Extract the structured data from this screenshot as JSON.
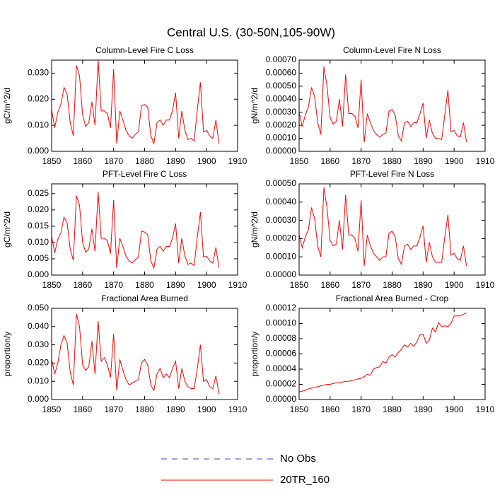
{
  "title": "Central U.S. (30-50N,105-90W)",
  "legend": [
    {
      "name": "No Obs",
      "color": "#4444bb",
      "dash": "dashed"
    },
    {
      "name": "20TR_160",
      "color": "#ff0000",
      "dash": "solid"
    }
  ],
  "chart_data": [
    {
      "type": "line",
      "title": "Column-Level Fire C Loss",
      "ylabel": "gC/m^2/d",
      "color": "#ff0000",
      "x": [
        1850,
        1851,
        1852,
        1853,
        1854,
        1855,
        1856,
        1857,
        1858,
        1859,
        1860,
        1861,
        1862,
        1863,
        1864,
        1865,
        1866,
        1867,
        1868,
        1869,
        1870,
        1871,
        1872,
        1873,
        1874,
        1875,
        1876,
        1877,
        1878,
        1879,
        1880,
        1881,
        1882,
        1883,
        1884,
        1885,
        1886,
        1887,
        1888,
        1889,
        1890,
        1891,
        1892,
        1893,
        1894,
        1895,
        1896,
        1897,
        1898,
        1899,
        1900,
        1901,
        1902,
        1903,
        1904
      ],
      "values": [
        0.016,
        0.009,
        0.015,
        0.018,
        0.0245,
        0.022,
        0.011,
        0.006,
        0.033,
        0.029,
        0.014,
        0.0095,
        0.011,
        0.019,
        0.01,
        0.035,
        0.0155,
        0.0155,
        0.0145,
        0.009,
        0.0315,
        0.003,
        0.0155,
        0.012,
        0.008,
        0.006,
        0.005,
        0.0065,
        0.0075,
        0.0175,
        0.018,
        0.017,
        0.006,
        0.003,
        0.011,
        0.012,
        0.01,
        0.012,
        0.012,
        0.0155,
        0.0225,
        0.005,
        0.0155,
        0.008,
        0.0045,
        0.005,
        0.004,
        0.016,
        0.0265,
        0.0075,
        0.008,
        0.006,
        0.005,
        0.012,
        0.003
      ],
      "xlim": [
        1850,
        1910
      ],
      "xticks": [
        1850,
        1860,
        1870,
        1880,
        1890,
        1900,
        1910
      ],
      "ylim": [
        0,
        0.035
      ],
      "yticks": [
        {
          "value": 0,
          "label": "0.000"
        },
        {
          "value": 0.01,
          "label": "0.010"
        },
        {
          "value": 0.02,
          "label": "0.020"
        },
        {
          "value": 0.03,
          "label": "0.030"
        }
      ]
    },
    {
      "type": "line",
      "title": "Column-Level Fire N Loss",
      "ylabel": "gN/m^2/d",
      "color": "#ff0000",
      "x": [
        1850,
        1851,
        1852,
        1853,
        1854,
        1855,
        1856,
        1857,
        1858,
        1859,
        1860,
        1861,
        1862,
        1863,
        1864,
        1865,
        1866,
        1867,
        1868,
        1869,
        1870,
        1871,
        1872,
        1873,
        1874,
        1875,
        1876,
        1877,
        1878,
        1879,
        1880,
        1881,
        1882,
        1883,
        1884,
        1885,
        1886,
        1887,
        1888,
        1889,
        1890,
        1891,
        1892,
        1893,
        1894,
        1895,
        1896,
        1897,
        1898,
        1899,
        1900,
        1901,
        1902,
        1903,
        1904
      ],
      "values": [
        0.0003,
        0.00019,
        0.00028,
        0.00034,
        0.00049,
        0.00042,
        0.00022,
        0.00013,
        0.00065,
        0.0005,
        0.00026,
        0.00021,
        0.00023,
        0.0004,
        0.00019,
        0.00059,
        0.00029,
        0.00029,
        0.00027,
        0.00018,
        0.00055,
        7e-05,
        0.00029,
        0.00022,
        0.00016,
        0.00013,
        0.00011,
        0.00013,
        0.00014,
        0.00031,
        0.00032,
        0.00028,
        0.00012,
        8e-05,
        0.00022,
        0.00023,
        0.00019,
        0.00022,
        0.00022,
        0.00029,
        0.00037,
        0.0001,
        0.00024,
        0.00014,
        0.0001,
        0.0001,
        9e-05,
        0.00028,
        0.00047,
        0.00015,
        0.00016,
        0.00012,
        0.00011,
        0.00022,
        7e-05
      ],
      "xlim": [
        1850,
        1910
      ],
      "xticks": [
        1850,
        1860,
        1870,
        1880,
        1890,
        1900,
        1910
      ],
      "ylim": [
        0,
        0.0007
      ],
      "yticks": [
        {
          "value": 0,
          "label": "0.00000"
        },
        {
          "value": 0.0001,
          "label": "0.00010"
        },
        {
          "value": 0.0002,
          "label": "0.00020"
        },
        {
          "value": 0.0003,
          "label": "0.00030"
        },
        {
          "value": 0.0004,
          "label": "0.00040"
        },
        {
          "value": 0.0005,
          "label": "0.00050"
        },
        {
          "value": 0.0006,
          "label": "0.00060"
        },
        {
          "value": 0.0007,
          "label": "0.00070"
        }
      ]
    },
    {
      "type": "line",
      "title": "PFT-Level Fire C Loss",
      "ylabel": "gC/m^2/d",
      "color": "#ff0000",
      "x": [
        1850,
        1851,
        1852,
        1853,
        1854,
        1855,
        1856,
        1857,
        1858,
        1859,
        1860,
        1861,
        1862,
        1863,
        1864,
        1865,
        1866,
        1867,
        1868,
        1869,
        1870,
        1871,
        1872,
        1873,
        1874,
        1875,
        1876,
        1877,
        1878,
        1879,
        1880,
        1881,
        1882,
        1883,
        1884,
        1885,
        1886,
        1887,
        1888,
        1889,
        1890,
        1891,
        1892,
        1893,
        1894,
        1895,
        1896,
        1897,
        1898,
        1899,
        1900,
        1901,
        1902,
        1903,
        1904
      ],
      "values": [
        0.012,
        0.0068,
        0.011,
        0.013,
        0.0178,
        0.016,
        0.008,
        0.0045,
        0.0243,
        0.0215,
        0.01,
        0.007,
        0.008,
        0.0142,
        0.0073,
        0.0255,
        0.0113,
        0.0113,
        0.0106,
        0.0066,
        0.023,
        0.0022,
        0.0113,
        0.0088,
        0.0058,
        0.0044,
        0.0037,
        0.0047,
        0.0055,
        0.0135,
        0.0132,
        0.0124,
        0.0044,
        0.0022,
        0.008,
        0.0088,
        0.0073,
        0.0088,
        0.0088,
        0.0113,
        0.0158,
        0.0037,
        0.0113,
        0.0058,
        0.0033,
        0.0037,
        0.0029,
        0.0117,
        0.0193,
        0.0055,
        0.0058,
        0.0044,
        0.0037,
        0.0085,
        0.0022
      ],
      "xlim": [
        1850,
        1910
      ],
      "xticks": [
        1850,
        1860,
        1870,
        1880,
        1890,
        1900,
        1910
      ],
      "ylim": [
        0,
        0.028
      ],
      "yticks": [
        {
          "value": 0,
          "label": "0.000"
        },
        {
          "value": 0.005,
          "label": "0.005"
        },
        {
          "value": 0.01,
          "label": "0.010"
        },
        {
          "value": 0.015,
          "label": "0.015"
        },
        {
          "value": 0.02,
          "label": "0.020"
        },
        {
          "value": 0.025,
          "label": "0.025"
        }
      ]
    },
    {
      "type": "line",
      "title": "PFT-Level Fire N Loss",
      "ylabel": "gN/m^2/d",
      "color": "#ff0000",
      "x": [
        1850,
        1851,
        1852,
        1853,
        1854,
        1855,
        1856,
        1857,
        1858,
        1859,
        1860,
        1861,
        1862,
        1863,
        1864,
        1865,
        1866,
        1867,
        1868,
        1869,
        1870,
        1871,
        1872,
        1873,
        1874,
        1875,
        1876,
        1877,
        1878,
        1879,
        1880,
        1881,
        1882,
        1883,
        1884,
        1885,
        1886,
        1887,
        1888,
        1889,
        1890,
        1891,
        1892,
        1893,
        1894,
        1895,
        1896,
        1897,
        1898,
        1899,
        1900,
        1901,
        1902,
        1903,
        1904
      ],
      "values": [
        0.00022,
        0.00015,
        0.00021,
        0.00025,
        0.00037,
        0.00031,
        0.00016,
        0.0001,
        0.00048,
        0.00037,
        0.00019,
        0.00016,
        0.00017,
        0.0003,
        0.00014,
        0.00044,
        0.00022,
        0.00022,
        0.0002,
        0.00013,
        0.00041,
        5e-05,
        0.00022,
        0.00016,
        0.00012,
        0.0001,
        8e-05,
        0.0001,
        0.0001,
        0.00023,
        0.00024,
        0.00021,
        9e-05,
        6e-05,
        0.00016,
        0.00017,
        0.00014,
        0.00016,
        0.00016,
        0.00021,
        0.00027,
        7e-05,
        0.00018,
        0.0001,
        7e-05,
        7e-05,
        7e-05,
        0.00021,
        0.00033,
        0.00011,
        0.00012,
        9e-05,
        8e-05,
        0.00016,
        5e-05
      ],
      "xlim": [
        1850,
        1910
      ],
      "xticks": [
        1850,
        1860,
        1870,
        1880,
        1890,
        1900,
        1910
      ],
      "ylim": [
        0,
        0.0005
      ],
      "yticks": [
        {
          "value": 0,
          "label": "0.00000"
        },
        {
          "value": 0.0001,
          "label": "0.00010"
        },
        {
          "value": 0.0002,
          "label": "0.00020"
        },
        {
          "value": 0.0003,
          "label": "0.00030"
        },
        {
          "value": 0.0004,
          "label": "0.00040"
        },
        {
          "value": 0.0005,
          "label": "0.00050"
        }
      ]
    },
    {
      "type": "line",
      "title": "Fractional Area Burned",
      "ylabel": "proportion/y",
      "color": "#ff0000",
      "x": [
        1850,
        1851,
        1852,
        1853,
        1854,
        1855,
        1856,
        1857,
        1858,
        1859,
        1860,
        1861,
        1862,
        1863,
        1864,
        1865,
        1866,
        1867,
        1868,
        1869,
        1870,
        1871,
        1872,
        1873,
        1874,
        1875,
        1876,
        1877,
        1878,
        1879,
        1880,
        1881,
        1882,
        1883,
        1884,
        1885,
        1886,
        1887,
        1888,
        1889,
        1890,
        1891,
        1892,
        1893,
        1894,
        1895,
        1896,
        1897,
        1898,
        1899,
        1900,
        1901,
        1902,
        1903,
        1904
      ],
      "values": [
        0.022,
        0.014,
        0.02,
        0.03,
        0.035,
        0.031,
        0.015,
        0.008,
        0.047,
        0.04,
        0.019,
        0.016,
        0.018,
        0.032,
        0.014,
        0.043,
        0.021,
        0.023,
        0.019,
        0.012,
        0.036,
        0.005,
        0.022,
        0.016,
        0.011,
        0.008,
        0.009,
        0.01,
        0.011,
        0.02,
        0.022,
        0.019,
        0.008,
        0.005,
        0.014,
        0.017,
        0.012,
        0.014,
        0.012,
        0.017,
        0.021,
        0.006,
        0.017,
        0.01,
        0.007,
        0.006,
        0.006,
        0.017,
        0.03,
        0.01,
        0.011,
        0.007,
        0.006,
        0.013,
        0.003
      ],
      "xlim": [
        1850,
        1910
      ],
      "xticks": [
        1850,
        1860,
        1870,
        1880,
        1890,
        1900,
        1910
      ],
      "ylim": [
        0,
        0.05
      ],
      "yticks": [
        {
          "value": 0,
          "label": "0.000"
        },
        {
          "value": 0.01,
          "label": "0.010"
        },
        {
          "value": 0.02,
          "label": "0.020"
        },
        {
          "value": 0.03,
          "label": "0.030"
        },
        {
          "value": 0.04,
          "label": "0.040"
        },
        {
          "value": 0.05,
          "label": "0.050"
        }
      ]
    },
    {
      "type": "line",
      "title": "Fractional Area Burned - Crop",
      "ylabel": "proportion/y",
      "color": "#ff0000",
      "x": [
        1850,
        1851,
        1852,
        1853,
        1854,
        1855,
        1856,
        1857,
        1858,
        1859,
        1860,
        1861,
        1862,
        1863,
        1864,
        1865,
        1866,
        1867,
        1868,
        1869,
        1870,
        1871,
        1872,
        1873,
        1874,
        1875,
        1876,
        1877,
        1878,
        1879,
        1880,
        1881,
        1882,
        1883,
        1884,
        1885,
        1886,
        1887,
        1888,
        1889,
        1890,
        1891,
        1892,
        1893,
        1894,
        1895,
        1896,
        1897,
        1898,
        1899,
        1900,
        1901,
        1902,
        1903,
        1904
      ],
      "values": [
        1e-05,
        1.1e-05,
        1.2e-05,
        1.4e-05,
        1.5e-05,
        1.6e-05,
        1.7e-05,
        1.8e-05,
        1.9e-05,
        2e-05,
        2e-05,
        2.1e-05,
        2.2e-05,
        2.2e-05,
        2.3e-05,
        2.4e-05,
        2.4e-05,
        2.5e-05,
        2.6e-05,
        2.7e-05,
        2.8e-05,
        3e-05,
        3.3e-05,
        3.2e-05,
        4e-05,
        4.2e-05,
        4.3e-05,
        5e-05,
        4.8e-05,
        5.6e-05,
        5.9e-05,
        5.6e-05,
        6.2e-05,
        6.6e-05,
        7.2e-05,
        6.9e-05,
        7.4e-05,
        7e-05,
        7.6e-05,
        8.5e-05,
        8.6e-05,
        7.4e-05,
        7.8e-05,
        9.4e-05,
        8.9e-05,
        0.000101,
        9.6e-05,
        9.7e-05,
        9.6e-05,
        0.0001,
        0.00011,
        0.00011,
        0.00011,
        0.000112,
        0.000114
      ],
      "xlim": [
        1850,
        1910
      ],
      "xticks": [
        1850,
        1860,
        1870,
        1880,
        1890,
        1900,
        1910
      ],
      "ylim": [
        0,
        0.00012
      ],
      "yticks": [
        {
          "value": 0,
          "label": "0.00000"
        },
        {
          "value": 2e-05,
          "label": "0.00002"
        },
        {
          "value": 4e-05,
          "label": "0.00004"
        },
        {
          "value": 6e-05,
          "label": "0.00006"
        },
        {
          "value": 8e-05,
          "label": "0.00008"
        },
        {
          "value": 0.0001,
          "label": "0.00010"
        },
        {
          "value": 0.00012,
          "label": "0.00012"
        }
      ]
    }
  ]
}
